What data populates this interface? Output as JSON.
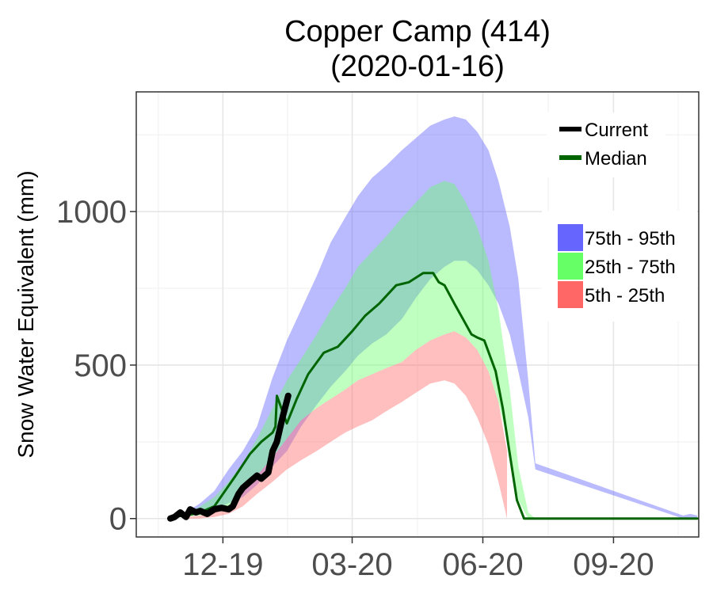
{
  "chart_data": {
    "type": "area",
    "title": [
      "Copper Camp (414)",
      "(2020-01-16)"
    ],
    "ylabel": "Snow Water Equivalent (mm)",
    "xlabel": "",
    "ylim": [
      -60,
      1390
    ],
    "xlim": [
      "2019-10-01",
      "2020-10-31"
    ],
    "x_ticks": [
      {
        "date": "2019-12-01",
        "label": "12-19"
      },
      {
        "date": "2020-03-01",
        "label": "03-20"
      },
      {
        "date": "2020-06-01",
        "label": "06-20"
      },
      {
        "date": "2020-09-01",
        "label": "09-20"
      }
    ],
    "y_ticks": [
      0,
      500,
      1000
    ],
    "legend_lines": [
      {
        "label": "Current",
        "color": "#000000"
      },
      {
        "label": "Median",
        "color": "#006400"
      }
    ],
    "legend_bands": [
      {
        "label": "75th - 95th",
        "color": "#6666ff"
      },
      {
        "label": "25th - 75th",
        "color": "#66ff66"
      },
      {
        "label": "5th - 25th",
        "color": "#ff6666"
      }
    ],
    "series": [
      {
        "name": "75th - 95th",
        "kind": "band",
        "color": "#6666ff",
        "opacity": 0.45,
        "x": [
          "2019-10-25",
          "2019-11-05",
          "2019-11-15",
          "2019-11-25",
          "2019-12-05",
          "2019-12-15",
          "2019-12-25",
          "2020-01-05",
          "2020-01-15",
          "2020-01-25",
          "2020-02-05",
          "2020-02-15",
          "2020-02-25",
          "2020-03-05",
          "2020-03-15",
          "2020-03-25",
          "2020-04-05",
          "2020-04-15",
          "2020-04-25",
          "2020-05-05",
          "2020-05-12",
          "2020-05-20",
          "2020-05-28",
          "2020-06-05",
          "2020-06-12",
          "2020-06-20",
          "2020-06-26",
          "2020-07-03",
          "2020-07-08",
          "2020-10-20",
          "2020-10-25",
          "2020-10-30"
        ],
        "low": [
          10,
          10,
          20,
          30,
          50,
          70,
          110,
          170,
          220,
          300,
          370,
          430,
          480,
          530,
          570,
          600,
          650,
          720,
          780,
          820,
          840,
          840,
          810,
          760,
          700,
          600,
          480,
          330,
          160,
          0,
          0,
          0
        ],
        "high": [
          10,
          20,
          50,
          90,
          160,
          220,
          300,
          460,
          580,
          680,
          790,
          900,
          980,
          1050,
          1110,
          1150,
          1200,
          1240,
          1280,
          1300,
          1310,
          1300,
          1260,
          1200,
          1100,
          950,
          780,
          450,
          180,
          10,
          15,
          10
        ]
      },
      {
        "name": "25th - 75th",
        "kind": "band",
        "color": "#66ff66",
        "opacity": 0.42,
        "x": [
          "2019-10-25",
          "2019-11-05",
          "2019-11-15",
          "2019-11-25",
          "2019-12-05",
          "2019-12-15",
          "2019-12-25",
          "2020-01-05",
          "2020-01-15",
          "2020-01-25",
          "2020-02-05",
          "2020-02-15",
          "2020-02-25",
          "2020-03-05",
          "2020-03-15",
          "2020-03-25",
          "2020-04-05",
          "2020-04-15",
          "2020-04-25",
          "2020-05-05",
          "2020-05-12",
          "2020-05-20",
          "2020-05-28",
          "2020-06-05",
          "2020-06-12",
          "2020-06-20",
          "2020-06-26",
          "2020-07-03",
          "2020-07-08"
        ],
        "low": [
          5,
          8,
          10,
          20,
          40,
          90,
          140,
          200,
          260,
          320,
          360,
          390,
          420,
          450,
          470,
          490,
          510,
          550,
          580,
          600,
          610,
          590,
          550,
          480,
          380,
          220,
          60,
          0,
          0
        ],
        "high": [
          8,
          15,
          40,
          70,
          120,
          180,
          260,
          360,
          450,
          520,
          600,
          680,
          750,
          820,
          870,
          920,
          980,
          1030,
          1080,
          1100,
          1090,
          1030,
          950,
          840,
          680,
          420,
          170,
          20,
          0
        ]
      },
      {
        "name": "5th - 25th",
        "kind": "band",
        "color": "#ff6666",
        "opacity": 0.42,
        "x": [
          "2019-11-05",
          "2019-11-15",
          "2019-11-25",
          "2019-12-05",
          "2019-12-15",
          "2019-12-25",
          "2020-01-05",
          "2020-01-15",
          "2020-01-25",
          "2020-02-05",
          "2020-02-15",
          "2020-02-25",
          "2020-03-05",
          "2020-03-15",
          "2020-03-25",
          "2020-04-05",
          "2020-04-15",
          "2020-04-25",
          "2020-05-05",
          "2020-05-12",
          "2020-05-20",
          "2020-05-28",
          "2020-06-05",
          "2020-06-12",
          "2020-06-18"
        ],
        "low": [
          0,
          0,
          5,
          15,
          40,
          80,
          120,
          160,
          190,
          220,
          250,
          280,
          300,
          320,
          350,
          380,
          410,
          440,
          450,
          440,
          400,
          330,
          240,
          120,
          0
        ],
        "high": [
          5,
          10,
          20,
          40,
          90,
          140,
          200,
          260,
          320,
          360,
          390,
          420,
          450,
          470,
          490,
          510,
          550,
          580,
          600,
          610,
          590,
          550,
          480,
          380,
          220
        ]
      },
      {
        "name": "Median",
        "kind": "line",
        "color": "#006400",
        "width": 3,
        "x": [
          "2019-10-25",
          "2019-11-05",
          "2019-11-15",
          "2019-11-25",
          "2019-12-01",
          "2019-12-10",
          "2019-12-20",
          "2019-12-28",
          "2020-01-05",
          "2020-01-07",
          "2020-01-08",
          "2020-01-15",
          "2020-01-22",
          "2020-01-30",
          "2020-02-10",
          "2020-02-20",
          "2020-03-01",
          "2020-03-10",
          "2020-03-20",
          "2020-04-01",
          "2020-04-10",
          "2020-04-20",
          "2020-04-27",
          "2020-05-01",
          "2020-05-05",
          "2020-05-12",
          "2020-05-18",
          "2020-05-24",
          "2020-05-28",
          "2020-06-02",
          "2020-06-10",
          "2020-06-15",
          "2020-06-20",
          "2020-06-25",
          "2020-06-30",
          "2020-07-01",
          "2020-10-30"
        ],
        "y": [
          5,
          10,
          20,
          40,
          80,
          140,
          210,
          250,
          280,
          300,
          400,
          310,
          390,
          470,
          540,
          560,
          610,
          660,
          700,
          760,
          770,
          800,
          800,
          770,
          760,
          700,
          650,
          600,
          590,
          580,
          480,
          360,
          210,
          60,
          0,
          0,
          0
        ]
      },
      {
        "name": "Current",
        "kind": "line",
        "color": "#000000",
        "width": 8,
        "x": [
          "2019-10-25",
          "2019-10-28",
          "2019-11-01",
          "2019-11-05",
          "2019-11-08",
          "2019-11-12",
          "2019-11-15",
          "2019-11-20",
          "2019-11-25",
          "2019-11-30",
          "2019-12-05",
          "2019-12-08",
          "2019-12-12",
          "2019-12-15",
          "2019-12-20",
          "2019-12-25",
          "2019-12-28",
          "2020-01-02",
          "2020-01-05",
          "2020-01-08",
          "2020-01-12",
          "2020-01-16"
        ],
        "y": [
          0,
          5,
          20,
          5,
          30,
          20,
          25,
          15,
          30,
          35,
          30,
          40,
          80,
          100,
          120,
          140,
          130,
          150,
          220,
          250,
          330,
          400
        ]
      }
    ]
  }
}
